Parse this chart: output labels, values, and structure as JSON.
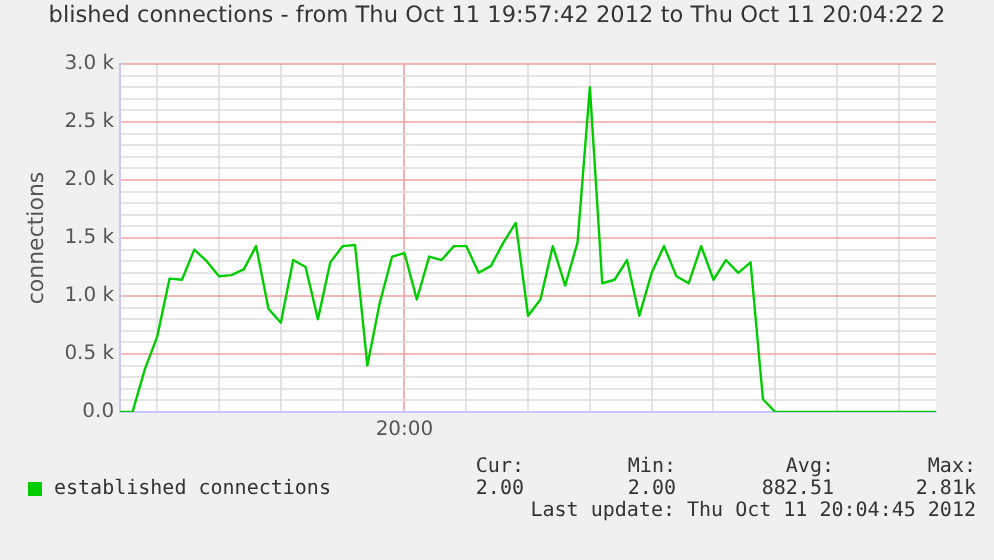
{
  "chart_data": {
    "type": "line",
    "title": "blished connections - from Thu Oct 11 19:57:42 2012 to Thu Oct 11 20:04:22 2",
    "ylabel": "connections",
    "categories": [
      null,
      null,
      null,
      null,
      null,
      null,
      null,
      null,
      null,
      null,
      null,
      null,
      null,
      null,
      null,
      null,
      null,
      null,
      null,
      null,
      null,
      null,
      null,
      "20:00",
      null,
      null,
      null,
      null,
      null,
      null,
      null,
      null,
      null,
      null,
      null,
      null,
      null,
      null,
      null,
      null,
      null,
      null,
      null,
      null,
      null,
      null,
      null,
      null,
      null,
      null,
      null,
      null,
      null,
      null,
      null,
      null,
      null,
      null,
      null,
      null,
      null,
      null,
      null,
      null,
      null,
      null,
      null
    ],
    "series": [
      {
        "name": "established connections",
        "color": "#00cc00",
        "values": [
          0,
          0,
          370,
          650,
          1150,
          1140,
          1400,
          1300,
          1170,
          1180,
          1230,
          1430,
          890,
          770,
          1310,
          1250,
          800,
          1290,
          1430,
          1440,
          400,
          940,
          1340,
          1370,
          970,
          1340,
          1310,
          1430,
          1430,
          1200,
          1260,
          1460,
          1630,
          830,
          970,
          1430,
          1090,
          1460,
          2800,
          1110,
          1140,
          1310,
          830,
          1200,
          1430,
          1170,
          1110,
          1430,
          1140,
          1310,
          1200,
          1290,
          110,
          0,
          0,
          0,
          0,
          0,
          0,
          0,
          0,
          0,
          0,
          0,
          0,
          0,
          0
        ]
      }
    ],
    "ylim": [
      0,
      3000
    ],
    "yticks": [
      {
        "value": 0,
        "label": "0.0"
      },
      {
        "value": 100,
        "label": null
      },
      {
        "value": 200,
        "label": null
      },
      {
        "value": 300,
        "label": null
      },
      {
        "value": 400,
        "label": null
      },
      {
        "value": 500,
        "label": "0.5 k"
      },
      {
        "value": 600,
        "label": null
      },
      {
        "value": 700,
        "label": null
      },
      {
        "value": 800,
        "label": null
      },
      {
        "value": 900,
        "label": null
      },
      {
        "value": 1000,
        "label": "1.0 k"
      },
      {
        "value": 1100,
        "label": null
      },
      {
        "value": 1200,
        "label": null
      },
      {
        "value": 1300,
        "label": null
      },
      {
        "value": 1400,
        "label": null
      },
      {
        "value": 1500,
        "label": "1.5 k"
      },
      {
        "value": 1600,
        "label": null
      },
      {
        "value": 1700,
        "label": null
      },
      {
        "value": 1800,
        "label": null
      },
      {
        "value": 1900,
        "label": null
      },
      {
        "value": 2000,
        "label": "2.0 k"
      },
      {
        "value": 2100,
        "label": null
      },
      {
        "value": 2200,
        "label": null
      },
      {
        "value": 2300,
        "label": null
      },
      {
        "value": 2400,
        "label": null
      },
      {
        "value": 2500,
        "label": "2.5 k"
      },
      {
        "value": 2600,
        "label": null
      },
      {
        "value": 2700,
        "label": null
      },
      {
        "value": 2800,
        "label": null
      },
      {
        "value": 2900,
        "label": null
      },
      {
        "value": 3000,
        "label": "3.0 k"
      }
    ],
    "grid": true,
    "legend": "bottom",
    "marker": "none",
    "line_style": "solid",
    "annotations": [
      "Cur:",
      "Min:",
      "Avg:",
      "Max:",
      "2.00",
      "2.00",
      "882.51",
      "2.81k",
      "Last update: Thu Oct 11 20:04:45 2012"
    ]
  }
}
